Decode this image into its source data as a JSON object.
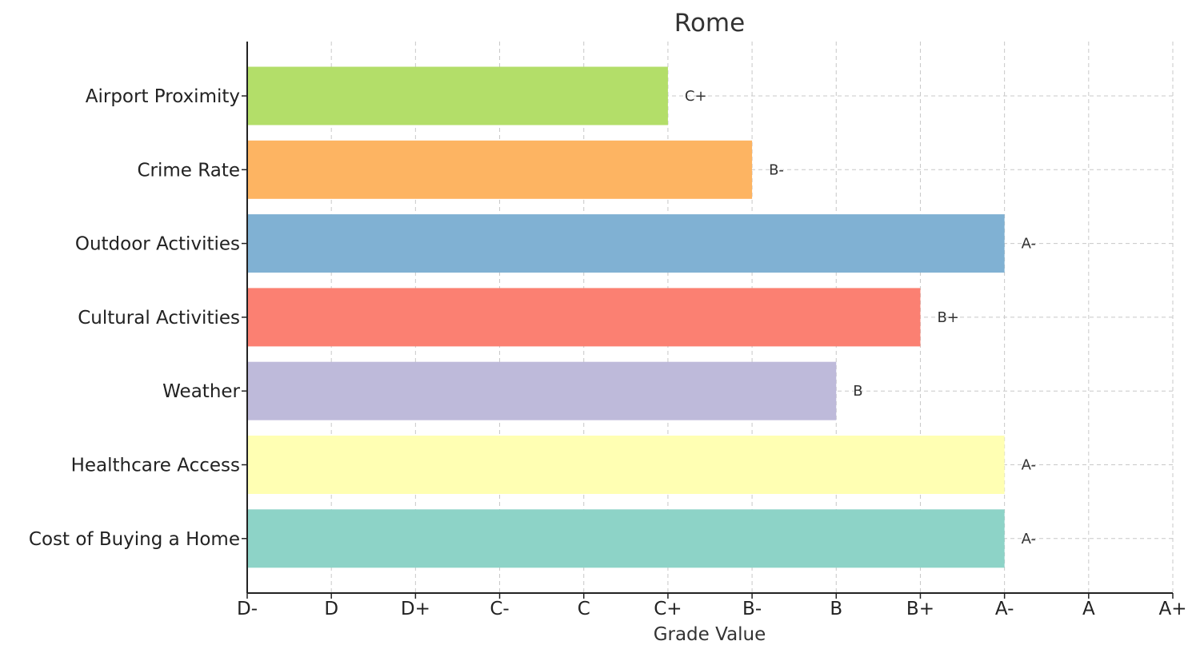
{
  "chart_data": {
    "type": "bar",
    "orientation": "horizontal",
    "title": "Rome",
    "xlabel": "Grade Value",
    "ylabel": "",
    "x_ticks": [
      "D-",
      "D",
      "D+",
      "C-",
      "C",
      "C+",
      "B-",
      "B",
      "B+",
      "A-",
      "A",
      "A+"
    ],
    "xlim": [
      0,
      11
    ],
    "grid": true,
    "categories": [
      "Airport Proximity",
      "Crime Rate",
      "Outdoor Activities",
      "Cultural Activities",
      "Weather",
      "Healthcare Access",
      "Cost of Buying a Home"
    ],
    "values": [
      5,
      6,
      9,
      8,
      7,
      9,
      9
    ],
    "value_labels": [
      "C+",
      "B-",
      "A-",
      "B+",
      "B",
      "A-",
      "A-"
    ],
    "colors": [
      "#b3de69",
      "#fdb462",
      "#80b1d3",
      "#fb8072",
      "#bebada",
      "#ffffb3",
      "#8dd3c7"
    ]
  }
}
